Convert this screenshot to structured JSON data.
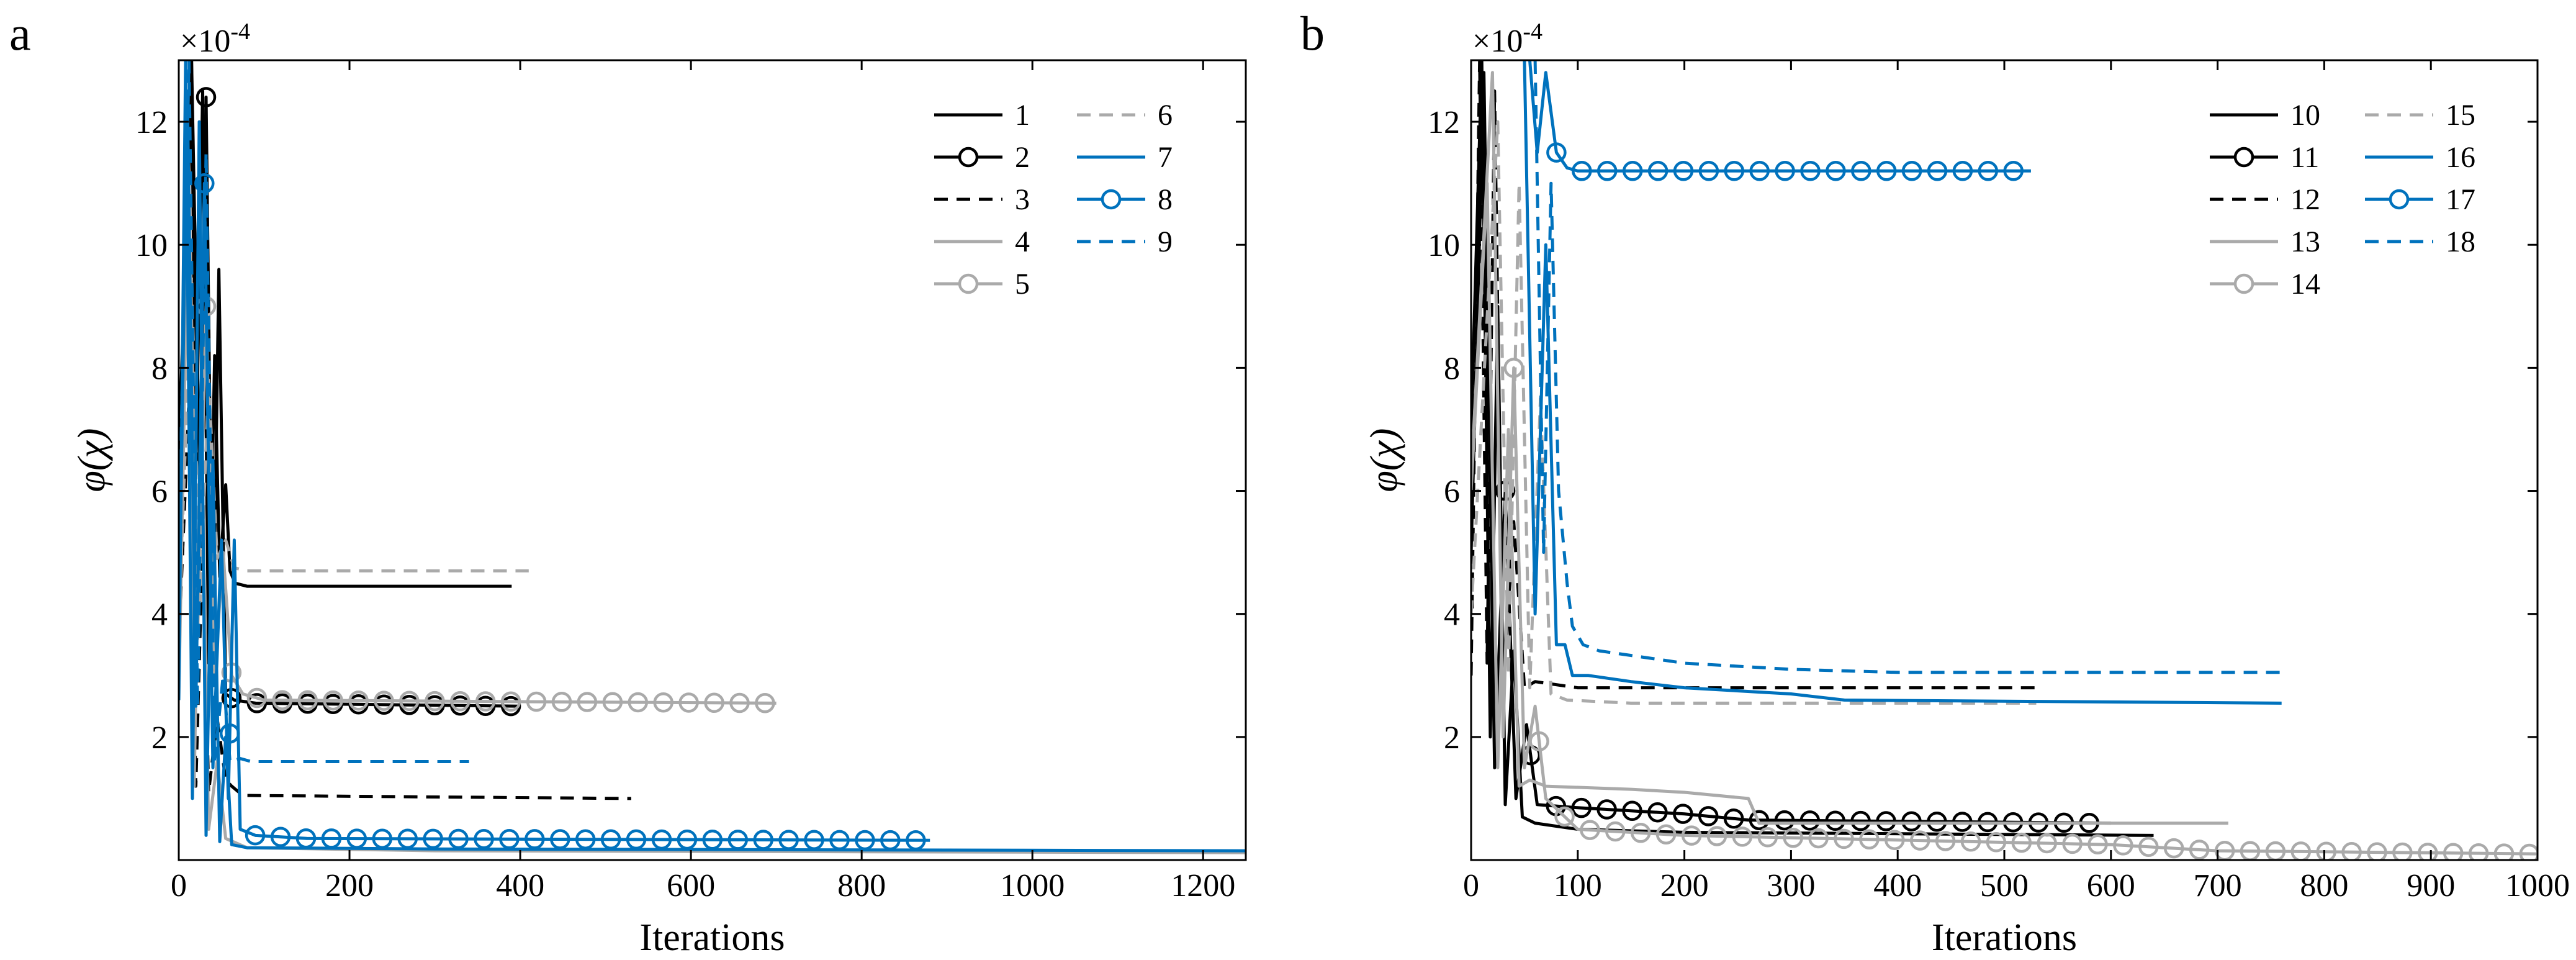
{
  "chart_data": [
    {
      "type": "line",
      "panel_label": "a",
      "xlabel": "Iterations",
      "ylabel": "φ(χ)",
      "y_exponent": "×10",
      "y_exponent_power": "-4",
      "xlim": [
        0,
        1250
      ],
      "ylim": [
        0,
        13
      ],
      "xticks": [
        0,
        200,
        400,
        600,
        800,
        1000,
        1200
      ],
      "yticks": [
        2,
        4,
        6,
        8,
        10,
        12
      ],
      "grid": false,
      "legend_position": "top-right",
      "series": [
        {
          "name": "1",
          "color": "#000000",
          "dash": "solid",
          "marker": "none",
          "points": [
            [
              0,
              4.0
            ],
            [
              15,
              13
            ],
            [
              20,
              6.2
            ],
            [
              28,
              12.5
            ],
            [
              35,
              3.2
            ],
            [
              42,
              8.2
            ],
            [
              48,
              4.6
            ],
            [
              55,
              6.1
            ],
            [
              60,
              4.7
            ],
            [
              66,
              4.5
            ],
            [
              80,
              4.45
            ],
            [
              390,
              4.45
            ]
          ]
        },
        {
          "name": "2",
          "color": "#000000",
          "dash": "solid",
          "marker": "circle",
          "points": [
            [
              0,
              6.5
            ],
            [
              15,
              13
            ],
            [
              25,
              5.8
            ],
            [
              32,
              12.4
            ],
            [
              40,
              3.1
            ],
            [
              47,
              9.6
            ],
            [
              55,
              2.7
            ],
            [
              65,
              2.6
            ],
            [
              90,
              2.55
            ],
            [
              400,
              2.5
            ]
          ]
        },
        {
          "name": "3",
          "color": "#000000",
          "dash": "dashed",
          "marker": "none",
          "points": [
            [
              0,
              3.5
            ],
            [
              12,
              7.5
            ],
            [
              20,
              1.2
            ],
            [
              28,
              5.2
            ],
            [
              35,
              1.1
            ],
            [
              45,
              2.3
            ],
            [
              55,
              1.3
            ],
            [
              62,
              1.2
            ],
            [
              75,
              1.05
            ],
            [
              530,
              1.0
            ]
          ]
        },
        {
          "name": "4",
          "color": "#aaaaaa",
          "dash": "solid",
          "marker": "none",
          "points": [
            [
              0,
              2.6
            ],
            [
              10,
              10
            ],
            [
              18,
              1.2
            ],
            [
              26,
              7.5
            ],
            [
              35,
              0.5
            ],
            [
              45,
              1.6
            ],
            [
              55,
              0.35
            ],
            [
              80,
              0.2
            ],
            [
              300,
              0.15
            ],
            [
              1250,
              0.12
            ]
          ]
        },
        {
          "name": "5",
          "color": "#aaaaaa",
          "dash": "solid",
          "marker": "circle",
          "points": [
            [
              0,
              4.8
            ],
            [
              12,
              11
            ],
            [
              22,
              3.6
            ],
            [
              32,
              9
            ],
            [
              42,
              3.0
            ],
            [
              52,
              5.0
            ],
            [
              62,
              3.0
            ],
            [
              75,
              2.7
            ],
            [
              100,
              2.6
            ],
            [
              700,
              2.55
            ]
          ]
        },
        {
          "name": "6",
          "color": "#aaaaaa",
          "dash": "dashed",
          "marker": "none",
          "points": [
            [
              0,
              3.8
            ],
            [
              15,
              9.5
            ],
            [
              25,
              4.2
            ],
            [
              35,
              7.8
            ],
            [
              45,
              4.9
            ],
            [
              55,
              5.2
            ],
            [
              65,
              4.75
            ],
            [
              80,
              4.7
            ],
            [
              410,
              4.7
            ]
          ]
        },
        {
          "name": "7",
          "color": "#0072bd",
          "dash": "solid",
          "marker": "none",
          "points": [
            [
              0,
              2.6
            ],
            [
              8,
              13
            ],
            [
              16,
              1.0
            ],
            [
              24,
              12
            ],
            [
              32,
              0.4
            ],
            [
              40,
              6.5
            ],
            [
              48,
              0.3
            ],
            [
              55,
              2.0
            ],
            [
              62,
              0.25
            ],
            [
              80,
              0.2
            ],
            [
              300,
              0.18
            ],
            [
              1250,
              0.15
            ]
          ]
        },
        {
          "name": "8",
          "color": "#0072bd",
          "dash": "solid",
          "marker": "circle",
          "points": [
            [
              0,
              3.5
            ],
            [
              10,
              12.5
            ],
            [
              20,
              2.5
            ],
            [
              30,
              11
            ],
            [
              40,
              1.5
            ],
            [
              50,
              5.2
            ],
            [
              58,
              1.0
            ],
            [
              65,
              5.2
            ],
            [
              72,
              0.5
            ],
            [
              90,
              0.4
            ],
            [
              150,
              0.35
            ],
            [
              880,
              0.32
            ]
          ]
        },
        {
          "name": "9",
          "color": "#0072bd",
          "dash": "dashed",
          "marker": "none",
          "points": [
            [
              0,
              5.0
            ],
            [
              12,
              13
            ],
            [
              22,
              2.5
            ],
            [
              32,
              11.5
            ],
            [
              42,
              1.6
            ],
            [
              52,
              3.0
            ],
            [
              60,
              1.6
            ],
            [
              72,
              1.65
            ],
            [
              85,
              1.6
            ],
            [
              340,
              1.6
            ]
          ]
        }
      ]
    },
    {
      "type": "line",
      "panel_label": "b",
      "xlabel": "Iterations",
      "ylabel": "φ(χ)",
      "y_exponent": "×10",
      "y_exponent_power": "-4",
      "xlim": [
        0,
        1000
      ],
      "ylim": [
        0,
        13
      ],
      "xticks": [
        0,
        100,
        200,
        300,
        400,
        500,
        600,
        700,
        800,
        900,
        1000
      ],
      "yticks": [
        2,
        4,
        6,
        8,
        10,
        12
      ],
      "grid": false,
      "legend_position": "top-right",
      "series": [
        {
          "name": "10",
          "color": "#000000",
          "dash": "solid",
          "marker": "none",
          "points": [
            [
              0,
              7
            ],
            [
              10,
              13
            ],
            [
              18,
              2
            ],
            [
              25,
              9
            ],
            [
              32,
              0.9
            ],
            [
              40,
              3.4
            ],
            [
              48,
              0.7
            ],
            [
              60,
              0.6
            ],
            [
              100,
              0.5
            ],
            [
              200,
              0.45
            ],
            [
              640,
              0.4
            ]
          ]
        },
        {
          "name": "11",
          "color": "#000000",
          "dash": "solid",
          "marker": "circle",
          "points": [
            [
              0,
              5
            ],
            [
              12,
              12.8
            ],
            [
              22,
              1.5
            ],
            [
              32,
              6
            ],
            [
              42,
              1.0
            ],
            [
              52,
              2.2
            ],
            [
              62,
              0.9
            ],
            [
              100,
              0.85
            ],
            [
              200,
              0.75
            ],
            [
              260,
              0.65
            ],
            [
              600,
              0.6
            ]
          ]
        },
        {
          "name": "12",
          "color": "#000000",
          "dash": "dashed",
          "marker": "none",
          "points": [
            [
              0,
              3
            ],
            [
              8,
              13
            ],
            [
              15,
              3.2
            ],
            [
              22,
              12.5
            ],
            [
              30,
              2.8
            ],
            [
              40,
              5.5
            ],
            [
              50,
              2.8
            ],
            [
              60,
              2.9
            ],
            [
              100,
              2.8
            ],
            [
              530,
              2.8
            ]
          ]
        },
        {
          "name": "13",
          "color": "#aaaaaa",
          "dash": "solid",
          "marker": "none",
          "points": [
            [
              0,
              6
            ],
            [
              15,
              11
            ],
            [
              25,
              1.5
            ],
            [
              35,
              7
            ],
            [
              45,
              1.2
            ],
            [
              55,
              1.3
            ],
            [
              70,
              1.2
            ],
            [
              150,
              1.15
            ],
            [
              200,
              1.1
            ],
            [
              260,
              1.0
            ],
            [
              270,
              0.6
            ],
            [
              710,
              0.6
            ]
          ]
        },
        {
          "name": "14",
          "color": "#aaaaaa",
          "dash": "solid",
          "marker": "circle",
          "points": [
            [
              0,
              6.2
            ],
            [
              20,
              12.8
            ],
            [
              30,
              2
            ],
            [
              40,
              8
            ],
            [
              50,
              1.5
            ],
            [
              60,
              2.5
            ],
            [
              70,
              1.0
            ],
            [
              100,
              0.5
            ],
            [
              200,
              0.4
            ],
            [
              600,
              0.25
            ],
            [
              700,
              0.15
            ],
            [
              1000,
              0.1
            ]
          ]
        },
        {
          "name": "15",
          "color": "#aaaaaa",
          "dash": "dashed",
          "marker": "none",
          "points": [
            [
              0,
              4
            ],
            [
              25,
              12
            ],
            [
              35,
              3
            ],
            [
              45,
              11
            ],
            [
              55,
              2.8
            ],
            [
              65,
              7.5
            ],
            [
              75,
              2.7
            ],
            [
              90,
              2.6
            ],
            [
              150,
              2.55
            ],
            [
              530,
              2.55
            ]
          ]
        },
        {
          "name": "16",
          "color": "#0072bd",
          "dash": "solid",
          "marker": "none",
          "points": [
            [
              50,
              13
            ],
            [
              60,
              4
            ],
            [
              70,
              10
            ],
            [
              80,
              3.5
            ],
            [
              88,
              3.5
            ],
            [
              95,
              3.0
            ],
            [
              110,
              3.0
            ],
            [
              150,
              2.9
            ],
            [
              200,
              2.8
            ],
            [
              300,
              2.7
            ],
            [
              350,
              2.6
            ],
            [
              760,
              2.55
            ]
          ]
        },
        {
          "name": "17",
          "color": "#0072bd",
          "dash": "solid",
          "marker": "circle",
          "points": [
            [
              55,
              13
            ],
            [
              62,
              11.5
            ],
            [
              70,
              12.8
            ],
            [
              80,
              11.5
            ],
            [
              90,
              11.25
            ],
            [
              100,
              11.2
            ],
            [
              525,
              11.2
            ]
          ]
        },
        {
          "name": "18",
          "color": "#0072bd",
          "dash": "dashed",
          "marker": "none",
          "points": [
            [
              60,
              13
            ],
            [
              68,
              5
            ],
            [
              75,
              11
            ],
            [
              82,
              6
            ],
            [
              90,
              4.5
            ],
            [
              95,
              3.8
            ],
            [
              105,
              3.5
            ],
            [
              120,
              3.4
            ],
            [
              200,
              3.2
            ],
            [
              300,
              3.1
            ],
            [
              400,
              3.05
            ],
            [
              760,
              3.05
            ]
          ]
        }
      ]
    }
  ]
}
